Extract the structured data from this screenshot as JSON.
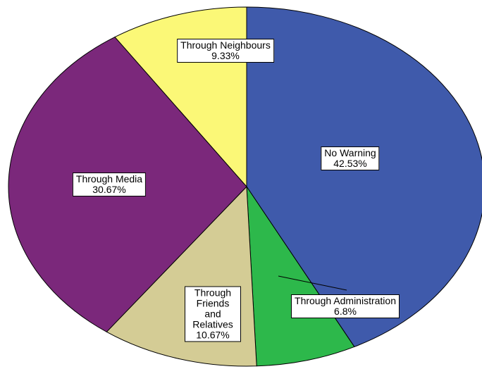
{
  "chart_data": {
    "type": "pie",
    "categories": [
      "No Warning",
      "Through Administration",
      "Through Friends and Relatives",
      "Through Media",
      "Through Neighbours"
    ],
    "values": [
      42.53,
      6.8,
      10.67,
      30.67,
      9.33
    ],
    "value_labels": [
      "42.53%",
      "6.8%",
      "10.67%",
      "30.67%",
      "9.33%"
    ],
    "colors": [
      "#3f5aab",
      "#2db84b",
      "#d4cc95",
      "#7b287b",
      "#fbf877"
    ]
  }
}
